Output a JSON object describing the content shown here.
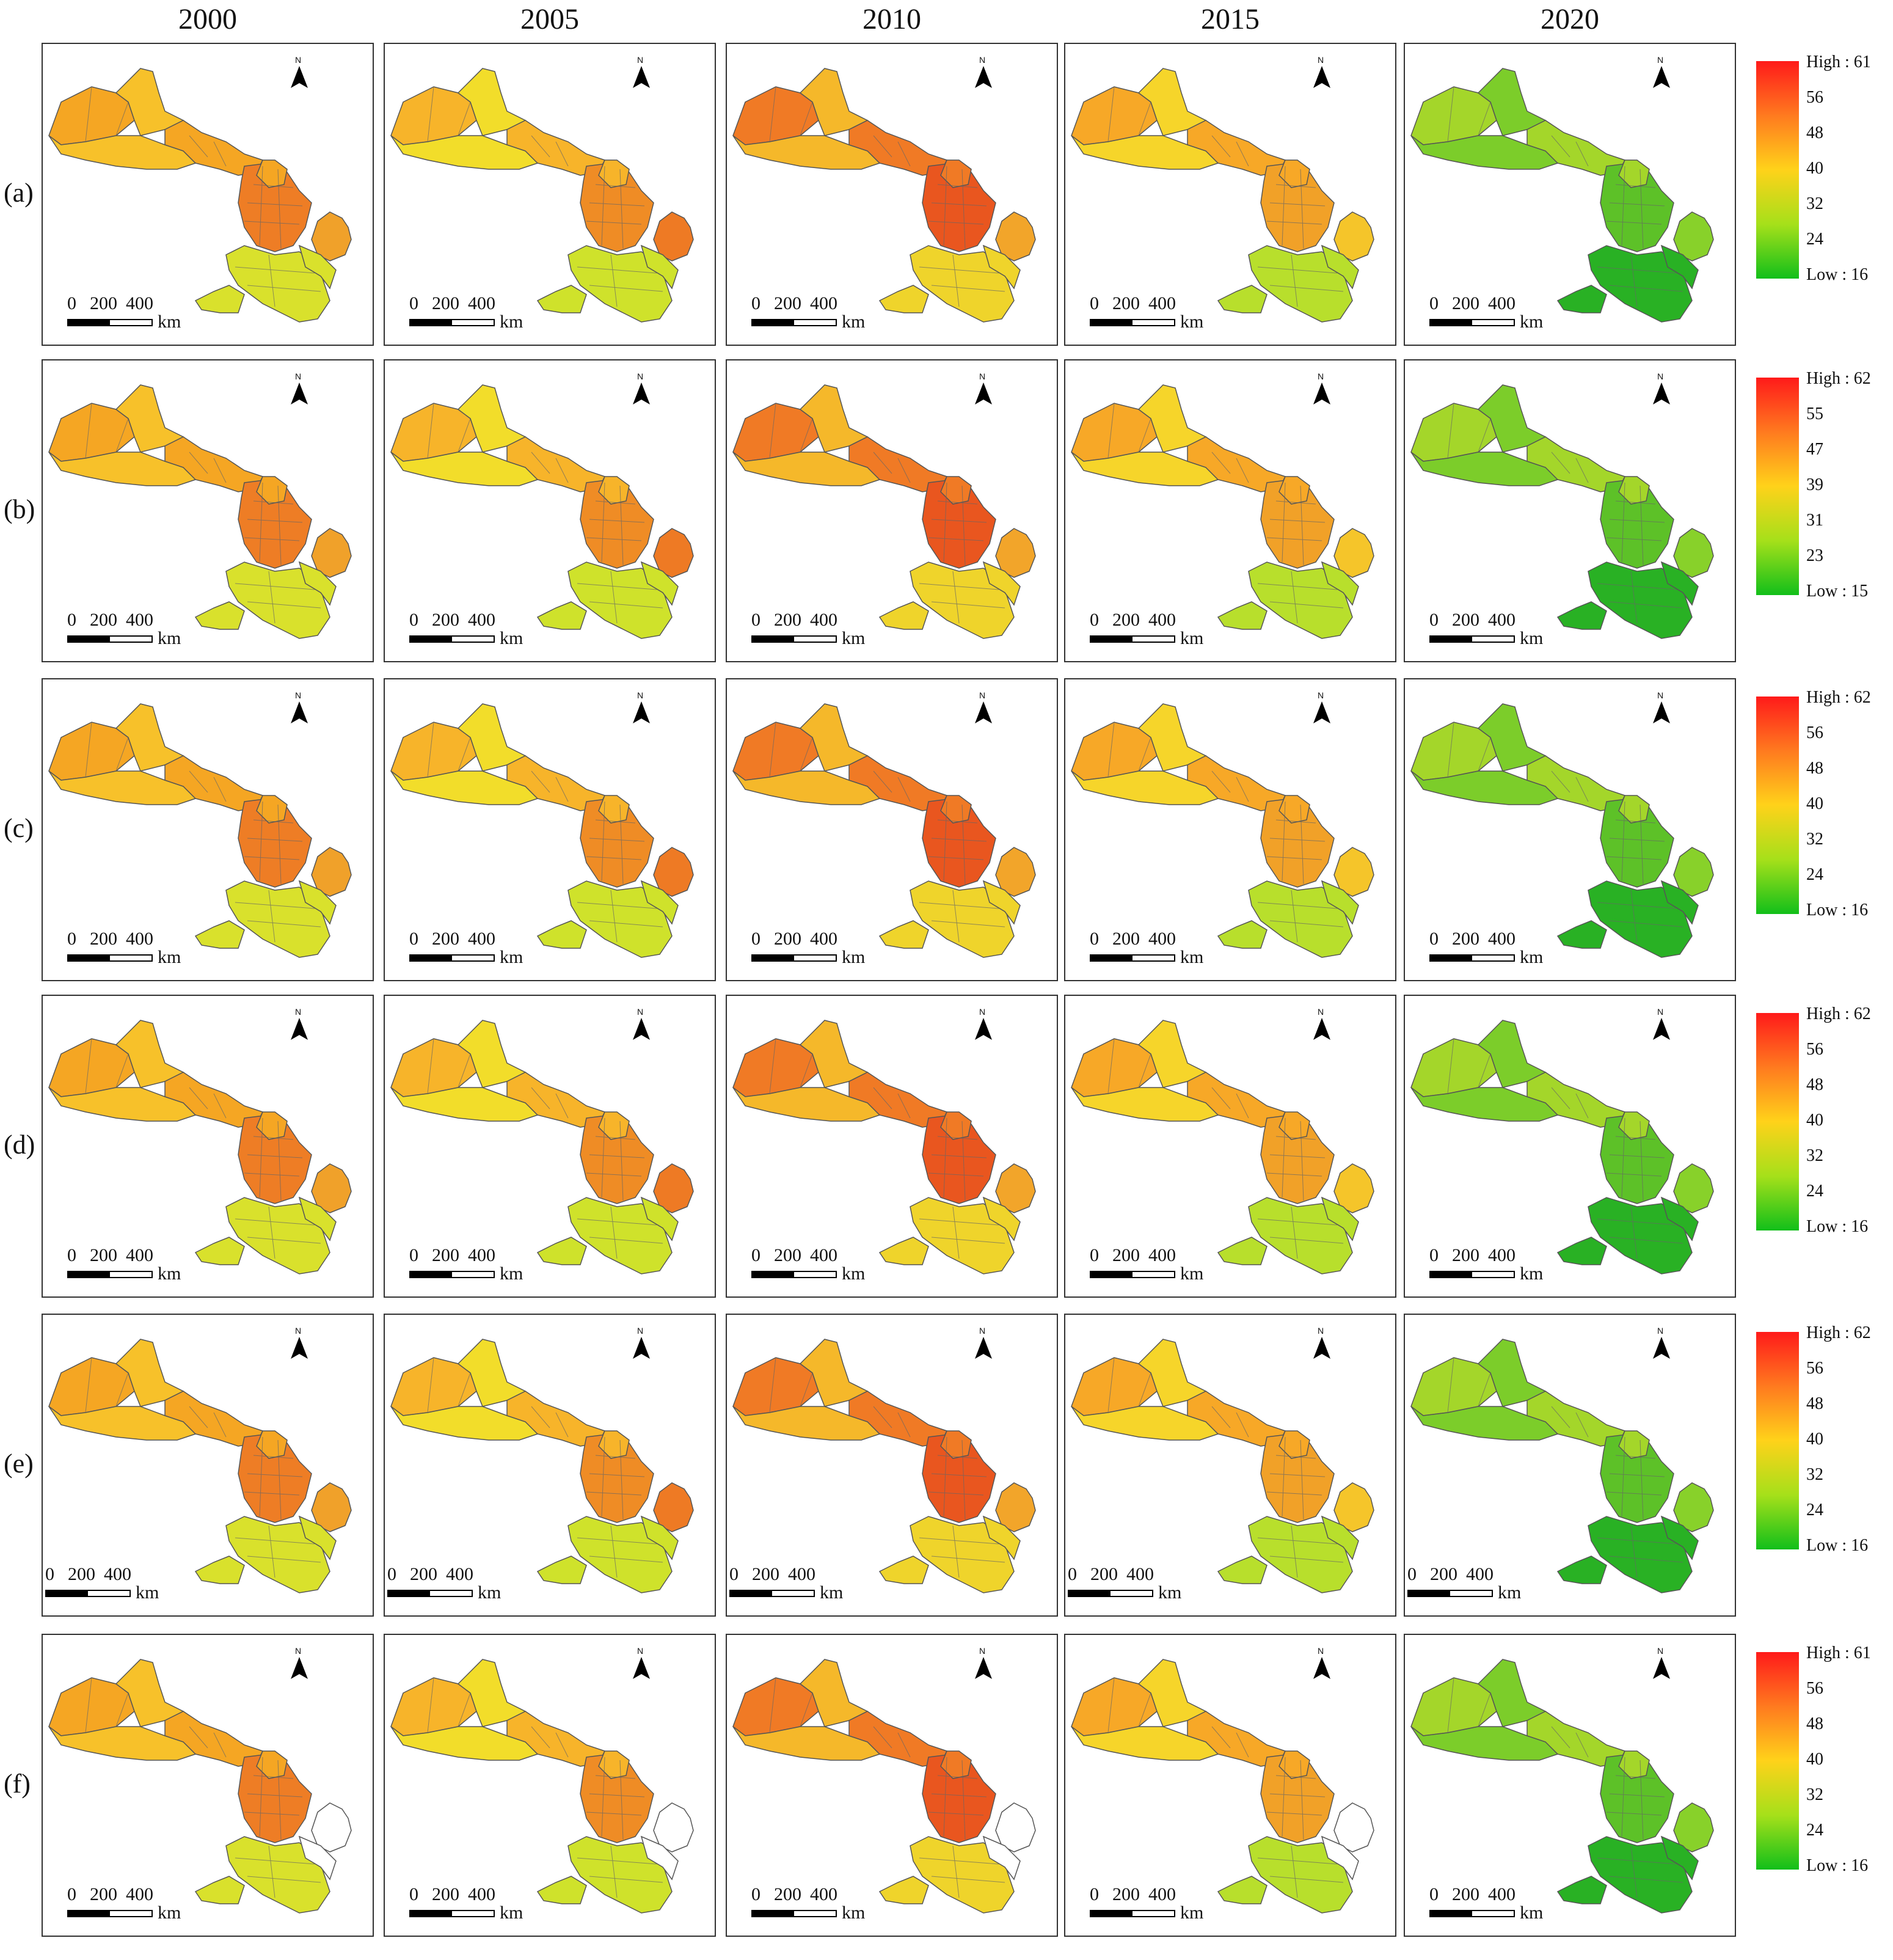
{
  "columns": [
    "2000",
    "2005",
    "2010",
    "2015",
    "2020"
  ],
  "rows": [
    "(a)",
    "(b)",
    "(c)",
    "(d)",
    "(e)",
    "(f)"
  ],
  "scale_bar": {
    "ticks": [
      "0",
      "200",
      "400"
    ],
    "unit": "km"
  },
  "north_label": "N",
  "legends": [
    {
      "high": "High : 61",
      "low": "Low : 16",
      "ticks": [
        "56",
        "48",
        "40",
        "32",
        "24"
      ]
    },
    {
      "high": "High : 62",
      "low": "Low : 15",
      "ticks": [
        "55",
        "47",
        "39",
        "31",
        "23"
      ]
    },
    {
      "high": "High : 62",
      "low": "Low : 16",
      "ticks": [
        "56",
        "48",
        "40",
        "32",
        "24"
      ]
    },
    {
      "high": "High : 62",
      "low": "Low : 16",
      "ticks": [
        "56",
        "48",
        "40",
        "32",
        "24"
      ]
    },
    {
      "high": "High : 62",
      "low": "Low : 16",
      "ticks": [
        "56",
        "48",
        "40",
        "32",
        "24"
      ]
    },
    {
      "high": "High : 61",
      "low": "Low : 16",
      "ticks": [
        "56",
        "48",
        "40",
        "32",
        "24"
      ]
    }
  ],
  "map_colors": {
    "2000": {
      "west": "#f5a623",
      "north": "#f7c12a",
      "central": "#ee7d25",
      "south": "#d9e12c",
      "east": "#f0a12a"
    },
    "2005": {
      "west": "#f7b42a",
      "north": "#f2dd2a",
      "central": "#ef8c25",
      "south": "#cfe22b",
      "east": "#ee7a24"
    },
    "2010": {
      "west": "#f07a25",
      "north": "#f5b82a",
      "central": "#e9561f",
      "south": "#efd42b",
      "east": "#f2a52a"
    },
    "2015": {
      "west": "#f7a827",
      "north": "#f6d52a",
      "central": "#f1a128",
      "south": "#b8df2c",
      "east": "#f5c52a"
    },
    "2020": {
      "west": "#a4d62a",
      "north": "#7ccd2a",
      "central": "#5dc128",
      "south": "#29b124",
      "east": "#88d12a"
    }
  },
  "colors": {
    "border": "#555555",
    "missing": "#ffffff"
  }
}
